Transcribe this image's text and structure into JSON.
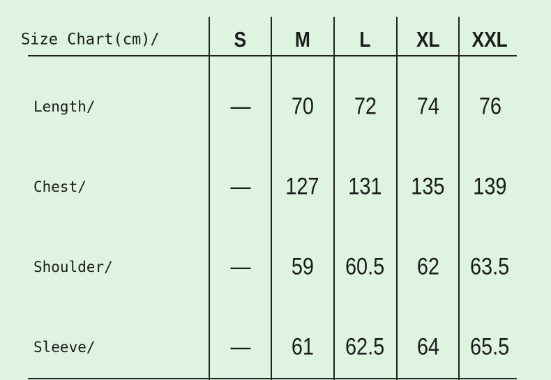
{
  "table": {
    "title": "Size Chart(cm)/",
    "sizes": [
      "S",
      "M",
      "L",
      "XL",
      "XXL"
    ],
    "rows": [
      {
        "label": "Length/",
        "values": [
          "—",
          "70",
          "72",
          "74",
          "76"
        ]
      },
      {
        "label": "Chest/",
        "values": [
          "—",
          "127",
          "131",
          "135",
          "139"
        ]
      },
      {
        "label": "Shoulder/",
        "values": [
          "—",
          "59",
          "60.5",
          "62",
          "63.5"
        ]
      },
      {
        "label": "Sleeve/",
        "values": [
          "—",
          "61",
          "62.5",
          "64",
          "65.5"
        ]
      }
    ]
  },
  "colors": {
    "background": "#def3e0",
    "lines": "#222222"
  }
}
